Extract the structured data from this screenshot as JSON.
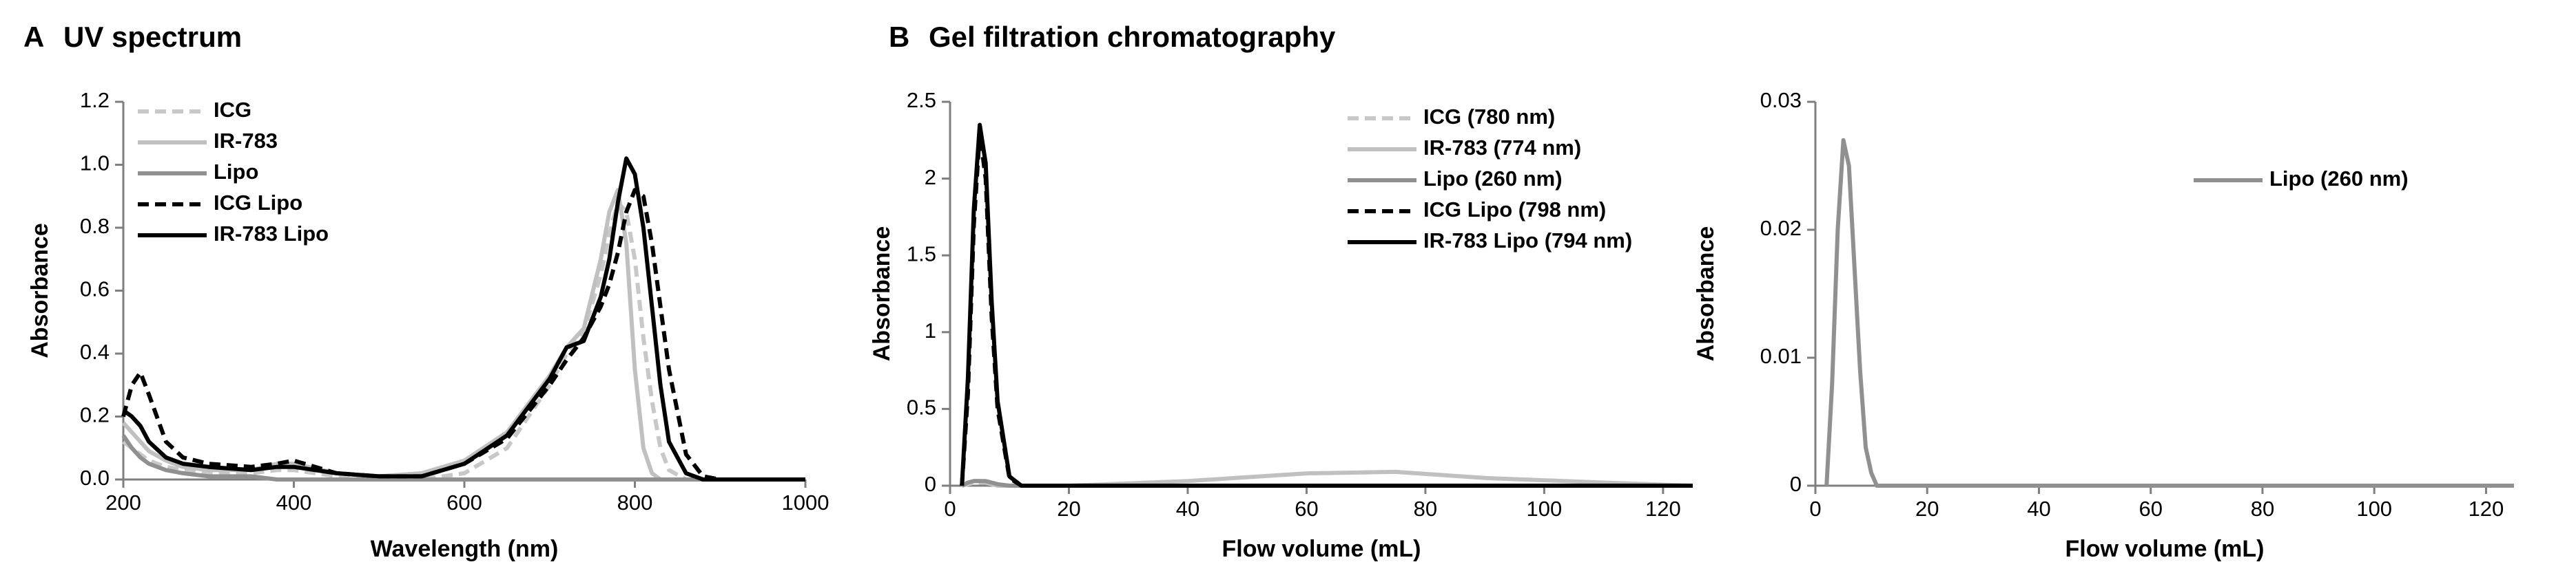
{
  "chart_data": [
    {
      "type": "line",
      "panel": "A",
      "title": "UV spectrum",
      "x_label": "Wavelength (nm)",
      "y_label": "Absorbance",
      "x": [
        200,
        210,
        220,
        230,
        250,
        270,
        300,
        350,
        380,
        400,
        450,
        500,
        550,
        600,
        650,
        700,
        720,
        740,
        760,
        770,
        780,
        790,
        800,
        810,
        820,
        830,
        840,
        860,
        880,
        900,
        1000
      ],
      "series": [
        {
          "name": "ICG",
          "color": "#c8c8c8",
          "dash": true,
          "values": [
            0.12,
            0.1,
            0.08,
            0.06,
            0.04,
            0.03,
            0.02,
            0.02,
            0.03,
            0.03,
            0.01,
            0.0,
            0.0,
            0.02,
            0.1,
            0.3,
            0.4,
            0.47,
            0.65,
            0.78,
            0.88,
            0.85,
            0.7,
            0.45,
            0.25,
            0.1,
            0.03,
            0.0,
            0.0,
            0.0,
            0.0
          ]
        },
        {
          "name": "IR-783",
          "color": "#c0c0c0",
          "dash": false,
          "values": [
            0.18,
            0.15,
            0.12,
            0.09,
            0.06,
            0.04,
            0.03,
            0.03,
            0.05,
            0.05,
            0.02,
            0.01,
            0.02,
            0.06,
            0.15,
            0.33,
            0.42,
            0.48,
            0.7,
            0.85,
            0.92,
            0.75,
            0.35,
            0.1,
            0.02,
            0.0,
            0.0,
            0.0,
            0.0,
            0.0,
            0.0
          ]
        },
        {
          "name": "Lipo",
          "color": "#909090",
          "dash": false,
          "values": [
            0.14,
            0.1,
            0.07,
            0.05,
            0.03,
            0.02,
            0.01,
            0.01,
            0.0,
            0.0,
            0.0,
            0.0,
            0.0,
            0.0,
            0.0,
            0.0,
            0.0,
            0.0,
            0.0,
            0.0,
            0.0,
            0.0,
            0.0,
            0.0,
            0.0,
            0.0,
            0.0,
            0.0,
            0.0,
            0.0,
            0.0
          ]
        },
        {
          "name": "ICG Lipo",
          "color": "#000000",
          "dash": true,
          "values": [
            0.2,
            0.3,
            0.34,
            0.27,
            0.12,
            0.07,
            0.05,
            0.04,
            0.05,
            0.06,
            0.02,
            0.01,
            0.01,
            0.05,
            0.13,
            0.3,
            0.38,
            0.45,
            0.55,
            0.62,
            0.72,
            0.85,
            0.92,
            0.9,
            0.75,
            0.55,
            0.35,
            0.08,
            0.01,
            0.0,
            0.0
          ]
        },
        {
          "name": "IR-783  Lipo",
          "color": "#000000",
          "dash": false,
          "values": [
            0.22,
            0.2,
            0.17,
            0.12,
            0.07,
            0.05,
            0.04,
            0.03,
            0.04,
            0.04,
            0.02,
            0.01,
            0.01,
            0.05,
            0.14,
            0.32,
            0.42,
            0.44,
            0.58,
            0.7,
            0.88,
            1.02,
            0.97,
            0.8,
            0.55,
            0.3,
            0.12,
            0.02,
            0.0,
            0.0,
            0.0
          ]
        }
      ],
      "xlim": [
        200,
        1000
      ],
      "ylim": [
        0,
        1.2
      ],
      "xticks": [
        200,
        400,
        600,
        800,
        1000
      ],
      "yticks": [
        {
          "value": 0,
          "label": "0.0"
        },
        {
          "value": 0.2,
          "label": "0.2"
        },
        {
          "value": 0.4,
          "label": "0.4"
        },
        {
          "value": 0.6,
          "label": "0.6"
        },
        {
          "value": 0.8,
          "label": "0.8"
        },
        {
          "value": 1,
          "label": "1.0"
        },
        {
          "value": 1.2,
          "label": "1.2"
        }
      ],
      "legend": "upper left"
    },
    {
      "type": "line",
      "panel": "B",
      "title": "Gel filtration chromatography",
      "x_label": "Flow volume (mL)",
      "y_label": "Absorbance",
      "x": [
        2,
        3,
        4,
        5,
        6,
        7,
        8,
        10,
        12,
        20,
        40,
        60,
        75,
        90,
        110,
        125
      ],
      "series": [
        {
          "name": "ICG  (780 nm)",
          "color": "#c8c8c8",
          "dash": true,
          "values": [
            0.0,
            0.01,
            0.02,
            0.02,
            0.02,
            0.01,
            0.0,
            0.0,
            0.0,
            0.0,
            0.0,
            0.0,
            0.0,
            0.0,
            0.0,
            0.0
          ]
        },
        {
          "name": "IR-783 (774 nm)",
          "color": "#c0c0c0",
          "dash": false,
          "values": [
            0.0,
            0.02,
            0.03,
            0.03,
            0.02,
            0.01,
            0.0,
            0.0,
            0.0,
            0.0,
            0.03,
            0.08,
            0.09,
            0.05,
            0.02,
            0.0
          ]
        },
        {
          "name": "Lipo (260 nm)",
          "color": "#909090",
          "dash": false,
          "values": [
            0.0,
            0.02,
            0.03,
            0.03,
            0.03,
            0.02,
            0.01,
            0.0,
            0.0,
            0.0,
            0.0,
            0.0,
            0.0,
            0.0,
            0.0,
            0.0
          ]
        },
        {
          "name": "ICG Lipo (798 nm)",
          "color": "#000000",
          "dash": true,
          "values": [
            0.0,
            0.6,
            1.7,
            2.3,
            2.0,
            1.1,
            0.5,
            0.05,
            0.0,
            0.0,
            0.0,
            0.0,
            0.0,
            0.0,
            0.0,
            0.0
          ]
        },
        {
          "name": "IR-783 Lipo (794 nm)",
          "color": "#000000",
          "dash": false,
          "values": [
            0.0,
            0.7,
            1.8,
            2.35,
            2.1,
            1.2,
            0.55,
            0.06,
            0.0,
            0.0,
            0.0,
            0.0,
            0.0,
            0.0,
            0.0,
            0.0
          ]
        }
      ],
      "xlim": [
        0,
        125
      ],
      "ylim": [
        0,
        2.5
      ],
      "xticks": [
        0,
        20,
        40,
        60,
        80,
        100,
        120
      ],
      "yticks": [
        0,
        0.5,
        1,
        1.5,
        2,
        2.5
      ],
      "legend": "upper right"
    },
    {
      "type": "line",
      "x_label": "Flow volume (mL)",
      "y_label": "Absorbance",
      "x": [
        2,
        3,
        4,
        5,
        6,
        7,
        8,
        9,
        10,
        11,
        20,
        60,
        125
      ],
      "series": [
        {
          "name": "Lipo (260 nm)",
          "color": "#909090",
          "dash": false,
          "values": [
            0.0,
            0.008,
            0.02,
            0.027,
            0.025,
            0.017,
            0.009,
            0.003,
            0.001,
            0.0,
            0.0,
            0.0,
            0.0
          ]
        }
      ],
      "xlim": [
        0,
        125
      ],
      "ylim": [
        0,
        0.03
      ],
      "xticks": [
        0,
        20,
        40,
        60,
        80,
        100,
        120
      ],
      "yticks": [
        0,
        0.01,
        0.02,
        0.03
      ],
      "legend": "center right"
    }
  ]
}
